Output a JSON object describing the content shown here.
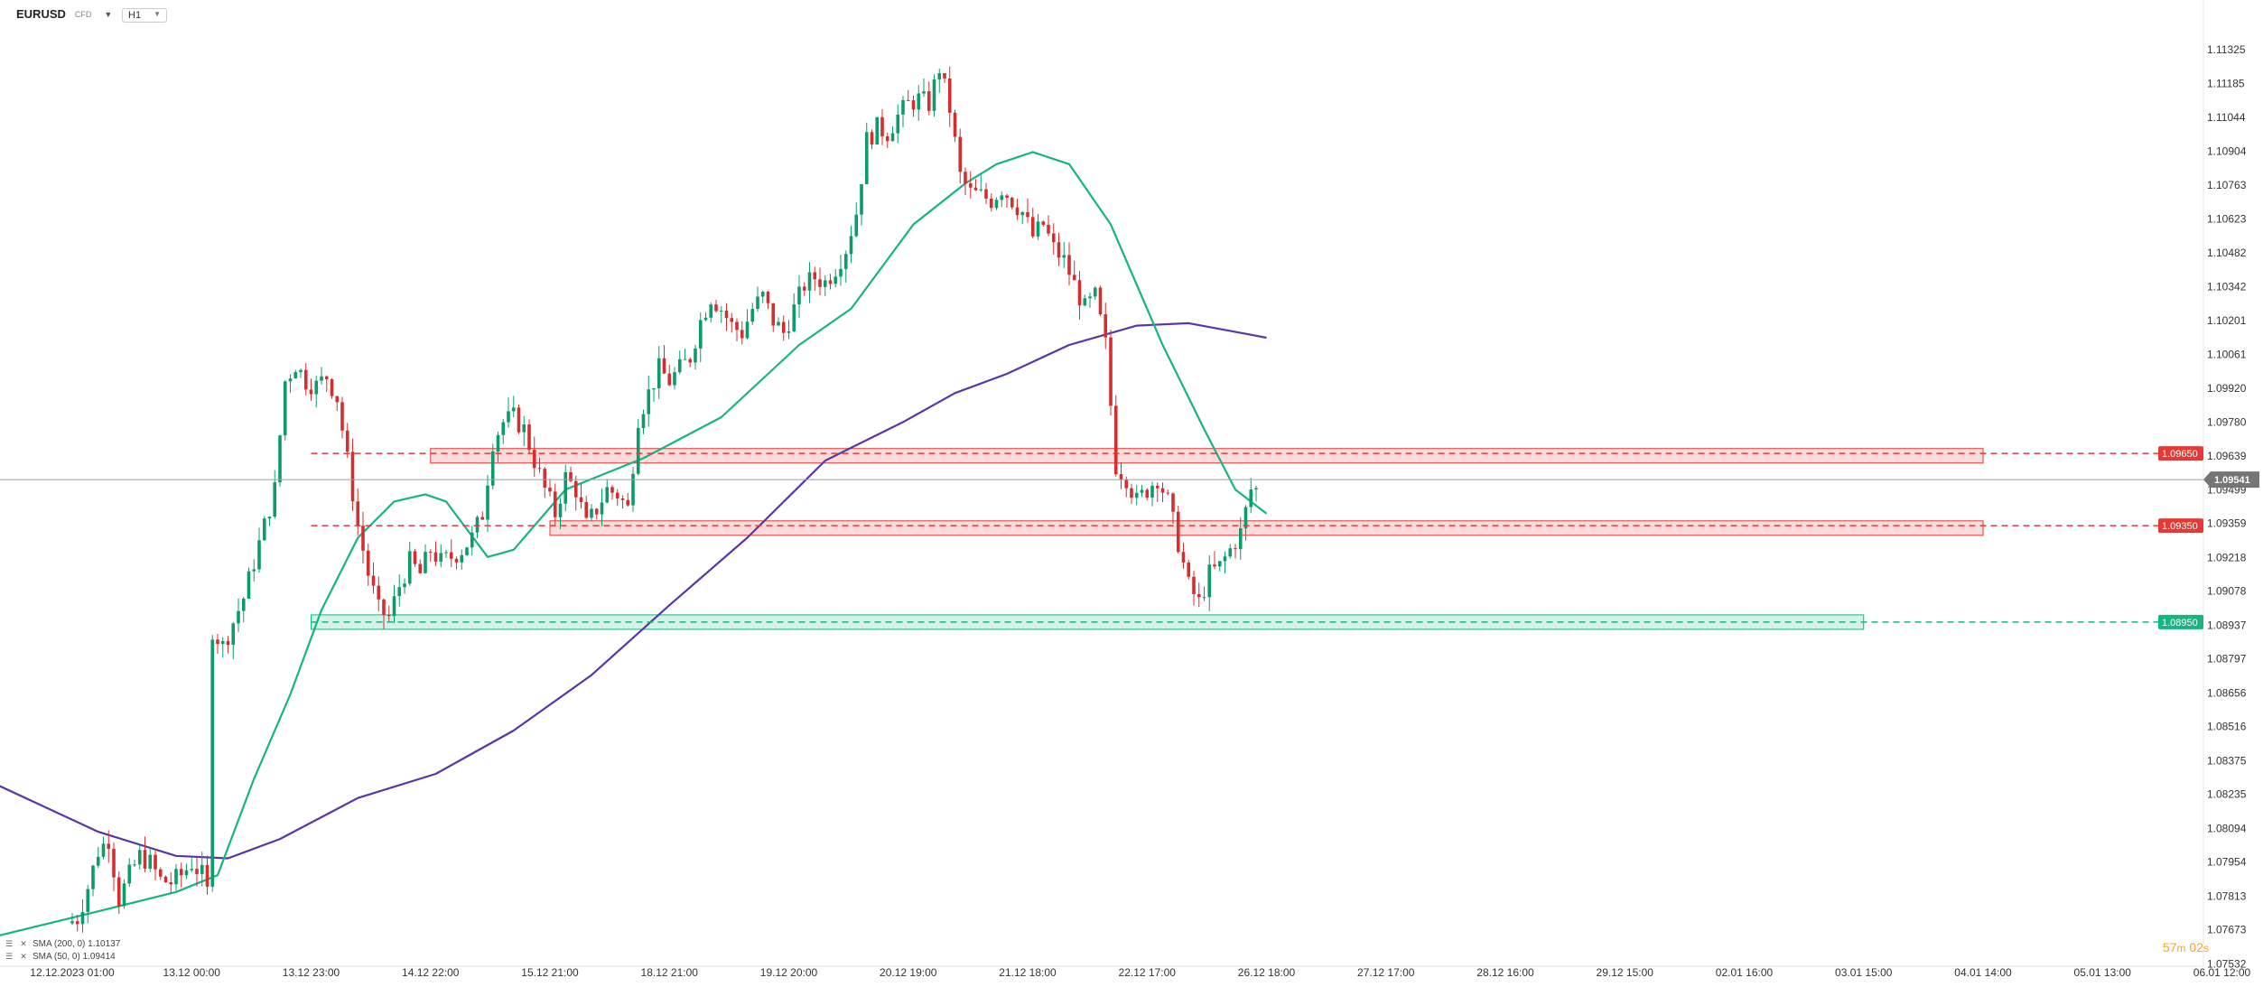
{
  "header": {
    "symbol": "EURUSD",
    "symbol_type": "CFD",
    "timeframe": "H1"
  },
  "legend": [
    {
      "label": "SMA (200, 0) 1.10137",
      "color": "#5b35a8"
    },
    {
      "label": "SMA (50, 0) 1.09414",
      "color": "#15b583"
    }
  ],
  "timer": {
    "minutes": "57",
    "m_unit": "m",
    "seconds": "02",
    "s_unit": "s"
  },
  "chart_data": {
    "type": "candlestick",
    "symbol": "EURUSD",
    "timeframe": "H1",
    "yaxis_ticks": [
      "1.11325",
      "1.11185",
      "1.11044",
      "1.10904",
      "1.10763",
      "1.10623",
      "1.10482",
      "1.10342",
      "1.10201",
      "1.10061",
      "1.09920",
      "1.09780",
      "1.09639",
      "1.09499",
      "1.09359",
      "1.09218",
      "1.09078",
      "1.08937",
      "1.08797",
      "1.08656",
      "1.08516",
      "1.08375",
      "1.08235",
      "1.08094",
      "1.07954",
      "1.07813",
      "1.07673",
      "1.07532"
    ],
    "xaxis_ticks": [
      "12.12.2023  01:00",
      "13.12  00:00",
      "13.12  23:00",
      "14.12  22:00",
      "15.12  21:00",
      "18.12  21:00",
      "19.12  20:00",
      "20.12  19:00",
      "21.12  18:00",
      "22.12  17:00",
      "26.12  18:00",
      "27.12  17:00",
      "28.12  16:00",
      "29.12  15:00",
      "02.01  16:00",
      "03.01  15:00",
      "04.01  14:00",
      "05.01  13:00",
      "06.01  12:00"
    ],
    "current_price": "1.09541",
    "levels": [
      {
        "price": "1.09650",
        "color": "#e53935",
        "style": "dashed"
      },
      {
        "price": "1.09350",
        "color": "#e53935",
        "style": "dashed"
      },
      {
        "price": "1.08950",
        "color": "#15b583",
        "style": "dashed"
      }
    ],
    "zones": [
      {
        "from_x": "14.12 22:00",
        "to_x": "04.01 14:00",
        "low": 1.0961,
        "high": 1.0967,
        "color": "#e53935"
      },
      {
        "from_x": "15.12 21:00",
        "to_x": "04.01 14:00",
        "low": 1.0931,
        "high": 1.0937,
        "color": "#e53935"
      },
      {
        "from_x": "13.12 23:00",
        "to_x": "03.01 15:00",
        "low": 1.0892,
        "high": 1.0898,
        "color": "#15b583"
      }
    ],
    "ohlc_path": [
      [
        0,
        1.077
      ],
      [
        2,
        1.0772
      ],
      [
        4,
        1.0785
      ],
      [
        6,
        1.08
      ],
      [
        8,
        1.0805
      ],
      [
        10,
        1.078
      ],
      [
        12,
        1.079
      ],
      [
        14,
        1.0798
      ],
      [
        16,
        1.0795
      ],
      [
        18,
        1.0788
      ],
      [
        20,
        1.0787
      ],
      [
        22,
        1.079
      ],
      [
        24,
        1.0795
      ],
      [
        26,
        1.079
      ],
      [
        27,
        1.0783
      ],
      [
        28,
        1.0892
      ],
      [
        30,
        1.0885
      ],
      [
        32,
        1.0895
      ],
      [
        34,
        1.0905
      ],
      [
        36,
        1.092
      ],
      [
        38,
        1.0935
      ],
      [
        40,
        1.095
      ],
      [
        42,
        1.0995
      ],
      [
        44,
        1.1002
      ],
      [
        46,
        1.0995
      ],
      [
        48,
        1.0993
      ],
      [
        50,
        1.0997
      ],
      [
        52,
        1.0988
      ],
      [
        54,
        1.0962
      ],
      [
        56,
        1.0935
      ],
      [
        58,
        1.0915
      ],
      [
        60,
        1.09
      ],
      [
        62,
        1.0897
      ],
      [
        64,
        1.091
      ],
      [
        66,
        1.092
      ],
      [
        68,
        1.0915
      ],
      [
        70,
        1.0925
      ],
      [
        72,
        1.092
      ],
      [
        74,
        1.0922
      ],
      [
        76,
        1.0925
      ],
      [
        78,
        1.093
      ],
      [
        80,
        1.094
      ],
      [
        82,
        1.097
      ],
      [
        84,
        1.0978
      ],
      [
        86,
        1.098
      ],
      [
        88,
        1.0975
      ],
      [
        90,
        1.0962
      ],
      [
        92,
        1.095
      ],
      [
        94,
        1.094
      ],
      [
        96,
        1.0955
      ],
      [
        98,
        1.095
      ],
      [
        100,
        1.0935
      ],
      [
        102,
        1.0942
      ],
      [
        104,
        1.095
      ],
      [
        106,
        1.0948
      ],
      [
        108,
        1.0942
      ],
      [
        110,
        1.098
      ],
      [
        112,
        1.099
      ],
      [
        114,
        1.1
      ],
      [
        116,
        1.0995
      ],
      [
        118,
        1.1
      ],
      [
        120,
        1.1005
      ],
      [
        122,
        1.102
      ],
      [
        124,
        1.103
      ],
      [
        126,
        1.1025
      ],
      [
        128,
        1.1018
      ],
      [
        130,
        1.1015
      ],
      [
        132,
        1.1025
      ],
      [
        134,
        1.103
      ],
      [
        136,
        1.102
      ],
      [
        138,
        1.1015
      ],
      [
        140,
        1.1025
      ],
      [
        142,
        1.1035
      ],
      [
        144,
        1.1038
      ],
      [
        146,
        1.1036
      ],
      [
        148,
        1.1042
      ],
      [
        150,
        1.105
      ],
      [
        152,
        1.1065
      ],
      [
        154,
        1.1095
      ],
      [
        156,
        1.11
      ],
      [
        158,
        1.1098
      ],
      [
        160,
        1.1105
      ],
      [
        162,
        1.111
      ],
      [
        164,
        1.1112
      ],
      [
        166,
        1.111
      ],
      [
        168,
        1.1125
      ],
      [
        170,
        1.1108
      ],
      [
        172,
        1.108
      ],
      [
        174,
        1.1073
      ],
      [
        176,
        1.1072
      ],
      [
        178,
        1.107
      ],
      [
        180,
        1.1075
      ],
      [
        182,
        1.107
      ],
      [
        184,
        1.1065
      ],
      [
        186,
        1.1055
      ],
      [
        188,
        1.106
      ],
      [
        190,
        1.105
      ],
      [
        192,
        1.1045
      ],
      [
        194,
        1.1035
      ],
      [
        196,
        1.1025
      ],
      [
        198,
        1.103
      ],
      [
        200,
        1.101
      ],
      [
        202,
        1.096
      ],
      [
        204,
        1.0955
      ],
      [
        206,
        1.0945
      ],
      [
        208,
        1.095
      ],
      [
        210,
        1.0955
      ],
      [
        212,
        1.0945
      ],
      [
        214,
        1.0928
      ],
      [
        216,
        1.091
      ],
      [
        218,
        1.0903
      ],
      [
        220,
        1.0915
      ],
      [
        222,
        1.0918
      ],
      [
        224,
        1.0925
      ],
      [
        226,
        1.0932
      ],
      [
        228,
        1.095
      ]
    ],
    "sma_200": [
      [
        -14,
        1.0827
      ],
      [
        5,
        1.0808
      ],
      [
        20,
        1.0798
      ],
      [
        30,
        1.0797
      ],
      [
        40,
        1.0805
      ],
      [
        55,
        1.0822
      ],
      [
        70,
        1.0832
      ],
      [
        85,
        1.085
      ],
      [
        100,
        1.0873
      ],
      [
        115,
        1.0902
      ],
      [
        130,
        1.093
      ],
      [
        145,
        1.0962
      ],
      [
        160,
        1.0978
      ],
      [
        170,
        1.099
      ],
      [
        180,
        1.0998
      ],
      [
        192,
        1.101
      ],
      [
        205,
        1.1018
      ],
      [
        215,
        1.1019
      ],
      [
        225,
        1.1015
      ],
      [
        230,
        1.1013
      ]
    ],
    "sma_50": [
      [
        -14,
        1.0765
      ],
      [
        5,
        1.0775
      ],
      [
        20,
        1.0783
      ],
      [
        28,
        1.079
      ],
      [
        35,
        1.083
      ],
      [
        42,
        1.0865
      ],
      [
        48,
        1.09
      ],
      [
        55,
        1.093
      ],
      [
        62,
        1.0945
      ],
      [
        68,
        1.0948
      ],
      [
        72,
        1.0945
      ],
      [
        80,
        1.0922
      ],
      [
        85,
        1.0925
      ],
      [
        95,
        1.095
      ],
      [
        110,
        1.0963
      ],
      [
        125,
        1.098
      ],
      [
        140,
        1.101
      ],
      [
        150,
        1.1025
      ],
      [
        162,
        1.106
      ],
      [
        172,
        1.1077
      ],
      [
        178,
        1.1085
      ],
      [
        185,
        1.109
      ],
      [
        192,
        1.1085
      ],
      [
        200,
        1.106
      ],
      [
        210,
        1.101
      ],
      [
        218,
        1.0975
      ],
      [
        224,
        1.095
      ],
      [
        230,
        1.094
      ]
    ]
  }
}
